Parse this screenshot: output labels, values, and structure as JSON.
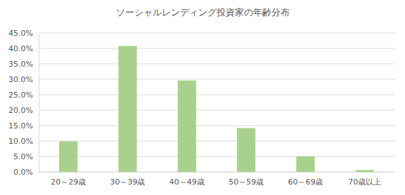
{
  "chart_data": {
    "type": "bar",
    "title": "ソーシャルレンディング投資家の年齢分布",
    "categories": [
      "20～29歳",
      "30～39歳",
      "40～49歳",
      "50～59歳",
      "60～69歳",
      "70歳以上"
    ],
    "values": [
      9.9,
      40.8,
      29.6,
      14.2,
      5.0,
      0.6
    ],
    "color": "#a9d18e",
    "ylim": [
      0,
      45
    ],
    "yticks": [
      {
        "value": 0,
        "label": "0.0%"
      },
      {
        "value": 5,
        "label": "5.0%"
      },
      {
        "value": 10,
        "label": "10.0%"
      },
      {
        "value": 15,
        "label": "15.0%"
      },
      {
        "value": 20,
        "label": "20.0%"
      },
      {
        "value": 25,
        "label": "25.0%"
      },
      {
        "value": 30,
        "label": "30.0%"
      },
      {
        "value": 35,
        "label": "35.0%"
      },
      {
        "value": 40,
        "label": "40.0%"
      },
      {
        "value": 45,
        "label": "45.0%"
      }
    ],
    "grid": true
  }
}
